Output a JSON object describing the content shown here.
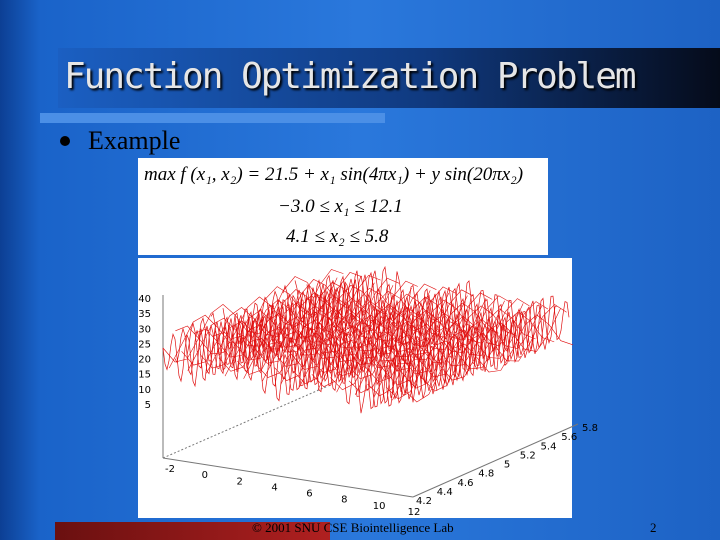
{
  "header": {
    "title": "Function Optimization Problem"
  },
  "bullet": {
    "text": "Example"
  },
  "formula": {
    "lines": [
      "max f (x₁, x₂) = 21.5 + x₁ sin(4πx₁) + y sin(20πx₂)",
      "−3.0 ≤ x₁ ≤ 12.1",
      "4.1 ≤ x₂ ≤ 5.8"
    ]
  },
  "plot": {
    "z_ticks": [
      40,
      35,
      30,
      25,
      20,
      15,
      10,
      5
    ],
    "x_ticks": [
      -2,
      0,
      2,
      4,
      6,
      8,
      10,
      12
    ],
    "y_ticks": [
      4.2,
      4.4,
      4.6,
      4.8,
      5,
      5.2,
      5.4,
      5.6,
      5.8
    ]
  },
  "footer": {
    "text": "© 2001 SNU CSE Biointelligence Lab",
    "page": "2"
  }
}
